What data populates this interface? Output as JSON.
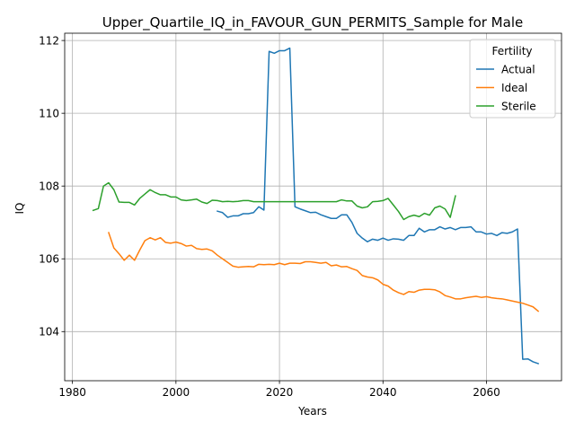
{
  "chart_data": {
    "type": "line",
    "title": "Upper_Quartile_IQ_in_FAVOUR_GUN_PERMITS_Sample for Male",
    "xlabel": "Years",
    "ylabel": "IQ",
    "xlim": [
      1978.5,
      2074.5
    ],
    "ylim": [
      102.65,
      112.2
    ],
    "xticks": [
      1980,
      2000,
      2020,
      2040,
      2060
    ],
    "yticks": [
      104,
      106,
      108,
      110,
      112
    ],
    "grid": true,
    "legend": {
      "title": "Fertility",
      "placement": "top-right"
    },
    "series": [
      {
        "name": "Actual",
        "color": "#1f77b4",
        "points": [
          [
            2008,
            107.31
          ],
          [
            2009,
            107.27
          ],
          [
            2010,
            107.14
          ],
          [
            2011,
            107.18
          ],
          [
            2012,
            107.18
          ],
          [
            2013,
            107.24
          ],
          [
            2014,
            107.24
          ],
          [
            2015,
            107.27
          ],
          [
            2016,
            107.43
          ],
          [
            2017,
            107.34
          ],
          [
            2018,
            111.7
          ],
          [
            2019,
            111.65
          ],
          [
            2020,
            111.72
          ],
          [
            2021,
            111.72
          ],
          [
            2022,
            111.79
          ],
          [
            2023,
            107.43
          ],
          [
            2024,
            107.37
          ],
          [
            2025,
            107.32
          ],
          [
            2026,
            107.27
          ],
          [
            2027,
            107.28
          ],
          [
            2028,
            107.21
          ],
          [
            2029,
            107.16
          ],
          [
            2030,
            107.11
          ],
          [
            2031,
            107.11
          ],
          [
            2032,
            107.21
          ],
          [
            2033,
            107.21
          ],
          [
            2034,
            107.0
          ],
          [
            2035,
            106.7
          ],
          [
            2036,
            106.57
          ],
          [
            2037,
            106.47
          ],
          [
            2038,
            106.54
          ],
          [
            2039,
            106.51
          ],
          [
            2040,
            106.57
          ],
          [
            2041,
            106.51
          ],
          [
            2042,
            106.55
          ],
          [
            2043,
            106.54
          ],
          [
            2044,
            106.51
          ],
          [
            2045,
            106.64
          ],
          [
            2046,
            106.64
          ],
          [
            2047,
            106.84
          ],
          [
            2048,
            106.74
          ],
          [
            2049,
            106.8
          ],
          [
            2050,
            106.8
          ],
          [
            2051,
            106.88
          ],
          [
            2052,
            106.82
          ],
          [
            2053,
            106.86
          ],
          [
            2054,
            106.8
          ],
          [
            2055,
            106.86
          ],
          [
            2056,
            106.86
          ],
          [
            2057,
            106.88
          ],
          [
            2058,
            106.74
          ],
          [
            2059,
            106.74
          ],
          [
            2060,
            106.68
          ],
          [
            2061,
            106.7
          ],
          [
            2062,
            106.64
          ],
          [
            2063,
            106.72
          ],
          [
            2064,
            106.7
          ],
          [
            2065,
            106.74
          ],
          [
            2066,
            106.82
          ],
          [
            2067,
            103.24
          ],
          [
            2068,
            103.25
          ],
          [
            2069,
            103.17
          ],
          [
            2070,
            103.12
          ]
        ]
      },
      {
        "name": "Ideal",
        "color": "#ff7f0e",
        "points": [
          [
            1987,
            106.72
          ],
          [
            1988,
            106.3
          ],
          [
            1989,
            106.14
          ],
          [
            1990,
            105.96
          ],
          [
            1991,
            106.1
          ],
          [
            1992,
            105.96
          ],
          [
            1993,
            106.24
          ],
          [
            1994,
            106.5
          ],
          [
            1995,
            106.58
          ],
          [
            1996,
            106.52
          ],
          [
            1997,
            106.58
          ],
          [
            1998,
            106.45
          ],
          [
            1999,
            106.43
          ],
          [
            2000,
            106.46
          ],
          [
            2001,
            106.42
          ],
          [
            2002,
            106.35
          ],
          [
            2003,
            106.37
          ],
          [
            2004,
            106.28
          ],
          [
            2005,
            106.26
          ],
          [
            2006,
            106.27
          ],
          [
            2007,
            106.22
          ],
          [
            2008,
            106.1
          ],
          [
            2009,
            106.0
          ],
          [
            2010,
            105.9
          ],
          [
            2011,
            105.8
          ],
          [
            2012,
            105.77
          ],
          [
            2013,
            105.78
          ],
          [
            2014,
            105.79
          ],
          [
            2015,
            105.78
          ],
          [
            2016,
            105.85
          ],
          [
            2017,
            105.84
          ],
          [
            2018,
            105.85
          ],
          [
            2019,
            105.84
          ],
          [
            2020,
            105.88
          ],
          [
            2021,
            105.84
          ],
          [
            2022,
            105.88
          ],
          [
            2023,
            105.88
          ],
          [
            2024,
            105.87
          ],
          [
            2025,
            105.92
          ],
          [
            2026,
            105.92
          ],
          [
            2027,
            105.9
          ],
          [
            2028,
            105.88
          ],
          [
            2029,
            105.9
          ],
          [
            2030,
            105.81
          ],
          [
            2031,
            105.83
          ],
          [
            2032,
            105.78
          ],
          [
            2033,
            105.79
          ],
          [
            2034,
            105.73
          ],
          [
            2035,
            105.68
          ],
          [
            2036,
            105.54
          ],
          [
            2037,
            105.5
          ],
          [
            2038,
            105.48
          ],
          [
            2039,
            105.42
          ],
          [
            2040,
            105.3
          ],
          [
            2041,
            105.25
          ],
          [
            2042,
            105.14
          ],
          [
            2043,
            105.07
          ],
          [
            2044,
            105.02
          ],
          [
            2045,
            105.1
          ],
          [
            2046,
            105.08
          ],
          [
            2047,
            105.14
          ],
          [
            2048,
            105.16
          ],
          [
            2049,
            105.16
          ],
          [
            2050,
            105.15
          ],
          [
            2051,
            105.09
          ],
          [
            2052,
            104.99
          ],
          [
            2053,
            104.95
          ],
          [
            2054,
            104.9
          ],
          [
            2055,
            104.9
          ],
          [
            2056,
            104.93
          ],
          [
            2057,
            104.95
          ],
          [
            2058,
            104.97
          ],
          [
            2059,
            104.94
          ],
          [
            2060,
            104.96
          ],
          [
            2061,
            104.93
          ],
          [
            2062,
            104.91
          ],
          [
            2063,
            104.9
          ],
          [
            2064,
            104.87
          ],
          [
            2065,
            104.84
          ],
          [
            2066,
            104.81
          ],
          [
            2067,
            104.78
          ],
          [
            2068,
            104.73
          ],
          [
            2069,
            104.68
          ],
          [
            2070,
            104.56
          ]
        ]
      },
      {
        "name": "Sterile",
        "color": "#2ca02c",
        "points": [
          [
            1984,
            107.33
          ],
          [
            1985,
            107.38
          ],
          [
            1986,
            108.0
          ],
          [
            1987,
            108.09
          ],
          [
            1988,
            107.9
          ],
          [
            1989,
            107.56
          ],
          [
            1990,
            107.55
          ],
          [
            1991,
            107.55
          ],
          [
            1992,
            107.48
          ],
          [
            1993,
            107.66
          ],
          [
            1994,
            107.78
          ],
          [
            1995,
            107.9
          ],
          [
            1996,
            107.82
          ],
          [
            1997,
            107.76
          ],
          [
            1998,
            107.76
          ],
          [
            1999,
            107.7
          ],
          [
            2000,
            107.7
          ],
          [
            2001,
            107.62
          ],
          [
            2002,
            107.6
          ],
          [
            2003,
            107.62
          ],
          [
            2004,
            107.64
          ],
          [
            2005,
            107.56
          ],
          [
            2006,
            107.52
          ],
          [
            2007,
            107.61
          ],
          [
            2008,
            107.6
          ],
          [
            2009,
            107.57
          ],
          [
            2010,
            107.58
          ],
          [
            2011,
            107.57
          ],
          [
            2012,
            107.58
          ],
          [
            2013,
            107.6
          ],
          [
            2014,
            107.6
          ],
          [
            2015,
            107.57
          ],
          [
            2016,
            107.57
          ],
          [
            2017,
            107.57
          ],
          [
            2018,
            107.57
          ],
          [
            2019,
            107.57
          ],
          [
            2020,
            107.57
          ],
          [
            2021,
            107.57
          ],
          [
            2022,
            107.57
          ],
          [
            2023,
            107.57
          ],
          [
            2024,
            107.57
          ],
          [
            2025,
            107.57
          ],
          [
            2026,
            107.57
          ],
          [
            2027,
            107.57
          ],
          [
            2028,
            107.57
          ],
          [
            2029,
            107.57
          ],
          [
            2030,
            107.57
          ],
          [
            2031,
            107.57
          ],
          [
            2032,
            107.62
          ],
          [
            2033,
            107.59
          ],
          [
            2034,
            107.59
          ],
          [
            2035,
            107.45
          ],
          [
            2036,
            107.4
          ],
          [
            2037,
            107.43
          ],
          [
            2038,
            107.57
          ],
          [
            2039,
            107.58
          ],
          [
            2040,
            107.6
          ],
          [
            2041,
            107.66
          ],
          [
            2042,
            107.48
          ],
          [
            2043,
            107.3
          ],
          [
            2044,
            107.08
          ],
          [
            2045,
            107.16
          ],
          [
            2046,
            107.2
          ],
          [
            2047,
            107.16
          ],
          [
            2048,
            107.25
          ],
          [
            2049,
            107.2
          ],
          [
            2050,
            107.4
          ],
          [
            2051,
            107.45
          ],
          [
            2052,
            107.37
          ],
          [
            2053,
            107.14
          ],
          [
            2054,
            107.73
          ]
        ]
      }
    ]
  }
}
